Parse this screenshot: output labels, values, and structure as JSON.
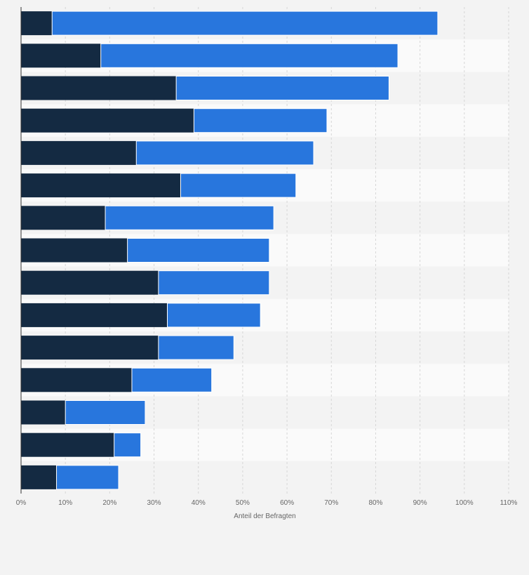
{
  "chart_data": {
    "type": "bar",
    "orientation": "horizontal",
    "stacked": true,
    "categories": [
      "",
      "",
      "",
      "",
      "",
      "",
      "",
      "",
      "",
      "",
      "",
      "",
      "",
      "",
      ""
    ],
    "series": [
      {
        "values": [
          7,
          18,
          35,
          39,
          26,
          36,
          19,
          24,
          31,
          33,
          31,
          25,
          10,
          21,
          8
        ]
      },
      {
        "values": [
          87,
          67,
          48,
          30,
          40,
          26,
          38,
          32,
          25,
          21,
          17,
          18,
          18,
          6,
          14
        ]
      }
    ],
    "xlim": [
      0,
      110
    ],
    "x_ticks": [
      "0%",
      "10%",
      "20%",
      "30%",
      "40%",
      "50%",
      "60%",
      "70%",
      "80%",
      "90%",
      "100%",
      "110%"
    ],
    "xlabel": "Anteil der Befragten",
    "grid": "vertical dashed",
    "colors": {
      "series": [
        "#142a42",
        "#2876dd"
      ],
      "band_light": "#f3f3f3",
      "band_dark": "#fafafa",
      "grid": "#d6d6d6",
      "axis": "#333333"
    }
  }
}
